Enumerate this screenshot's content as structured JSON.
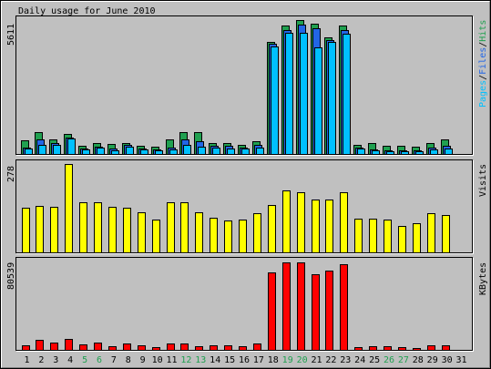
{
  "colors": {
    "background": "#c0c0c0",
    "text": "#000000",
    "weekend_label": "#20a050"
  },
  "legend_separator": "/",
  "chart_data": {
    "type": "bar",
    "title": "Daily usage for June 2010",
    "categories": [
      "1",
      "2",
      "3",
      "4",
      "5",
      "6",
      "7",
      "8",
      "9",
      "10",
      "11",
      "12",
      "13",
      "14",
      "15",
      "16",
      "17",
      "18",
      "19",
      "20",
      "21",
      "22",
      "23",
      "24",
      "25",
      "26",
      "27",
      "28",
      "29",
      "30",
      "31"
    ],
    "weekend_days": [
      5,
      6,
      12,
      13,
      19,
      20,
      26,
      27
    ],
    "grid": false,
    "legend_placement": "right",
    "panels": [
      {
        "ymax_label": "5611",
        "ylim": [
          0,
          5611
        ],
        "series": [
          {
            "name": "Hits",
            "color": "#20a050",
            "values": [
              580,
              930,
              620,
              850,
              350,
              460,
              430,
              460,
              350,
              310,
              620,
              930,
              930,
              460,
              460,
              390,
              540,
              4680,
              5380,
              5611,
              5460,
              4880,
              5380,
              390,
              460,
              350,
              350,
              310,
              460,
              620,
              0
            ]
          },
          {
            "name": "Files",
            "color": "#2266e6",
            "values": [
              270,
              620,
              460,
              700,
              230,
              310,
              230,
              390,
              230,
              190,
              270,
              620,
              540,
              350,
              350,
              270,
              390,
              4610,
              5190,
              5420,
              5260,
              4760,
              5190,
              270,
              190,
              150,
              150,
              150,
              270,
              350,
              0
            ]
          },
          {
            "name": "Pages",
            "color": "#00c0ff",
            "values": [
              230,
              390,
              390,
              660,
              190,
              270,
              150,
              310,
              190,
              150,
              190,
              390,
              310,
              270,
              230,
              230,
              270,
              4490,
              5070,
              5070,
              4450,
              4680,
              5030,
              230,
              150,
              120,
              120,
              120,
              190,
              230,
              0
            ]
          }
        ]
      },
      {
        "ymax_label": "278",
        "ylim": [
          0,
          278
        ],
        "series": [
          {
            "name": "Visits",
            "color": "#ffff00",
            "values": [
              140,
              146,
              143,
              278,
              158,
              158,
              143,
              140,
              126,
              102,
              158,
              158,
              126,
              108,
              99,
              102,
              123,
              149,
              194,
              188,
              167,
              167,
              188,
              105,
              105,
              102,
              84,
              93,
              123,
              117,
              0
            ]
          }
        ]
      },
      {
        "ymax_label": "80539",
        "ylim": [
          0,
          80539
        ],
        "series": [
          {
            "name": "KBytes",
            "color": "#ff0000",
            "values": [
              4300,
              9400,
              6900,
              10300,
              5100,
              6900,
              3400,
              6000,
              4300,
              2600,
              6000,
              6000,
              3400,
              4300,
              4300,
              3400,
              6000,
              71100,
              80539,
              80200,
              69400,
              72800,
              78800,
              2600,
              3400,
              3400,
              2600,
              1700,
              4300,
              4300,
              0
            ]
          }
        ]
      }
    ]
  }
}
